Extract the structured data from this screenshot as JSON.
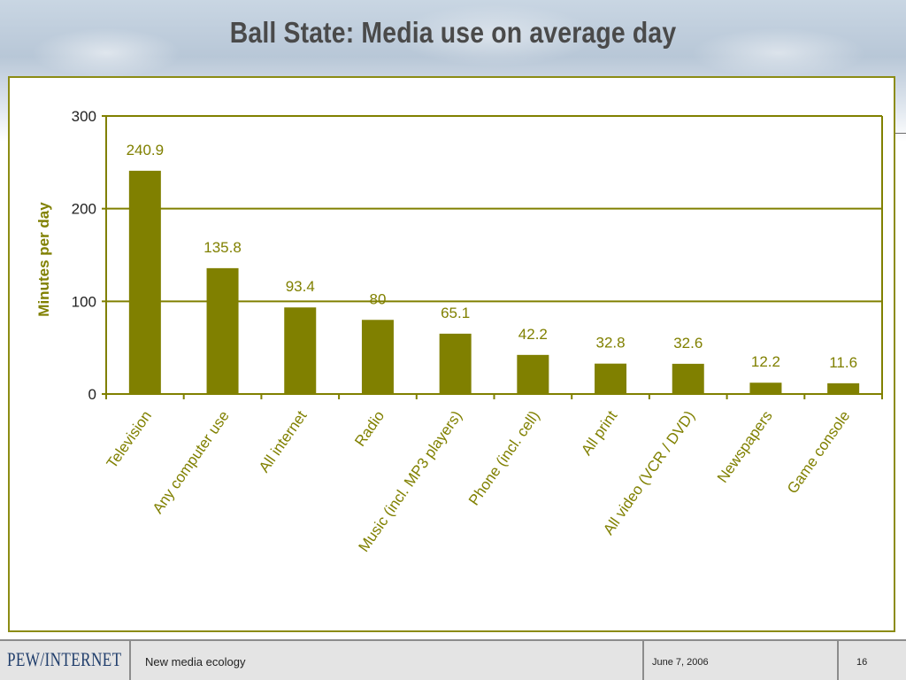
{
  "slide": {
    "title": "Ball State: Media use on average day"
  },
  "chart_data": {
    "type": "bar",
    "title": "",
    "ylabel": "Minutes per day",
    "xlabel": "",
    "ylim": [
      0,
      300
    ],
    "yticks": [
      0,
      100,
      200,
      300
    ],
    "grid": true,
    "legend": "none",
    "bar_color": "#808000",
    "categories": [
      "Television",
      "Any computer use",
      "All internet",
      "Radio",
      "Music (incl. MP3 players)",
      "Phone (incl. cell)",
      "All print",
      "All video (VCR / DVD)",
      "Newspapers",
      "Game console"
    ],
    "values": [
      240.9,
      135.8,
      93.4,
      80,
      65.1,
      42.2,
      32.8,
      32.6,
      12.2,
      11.6
    ],
    "data_labels": [
      "240.9",
      "135.8",
      "93.4",
      "80",
      "65.1",
      "42.2",
      "32.8",
      "32.6",
      "12.2",
      "11.6"
    ]
  },
  "footer": {
    "logo": "PEW/INTERNET",
    "section": "New media ecology",
    "date": "June 7, 2006",
    "page_number": "16"
  },
  "colors": {
    "accent": "#808000",
    "frame": "#8c8c14",
    "title": "#4a4a4a",
    "footer_bg": "#e4e4e4",
    "logo": "#1f3d6b"
  }
}
